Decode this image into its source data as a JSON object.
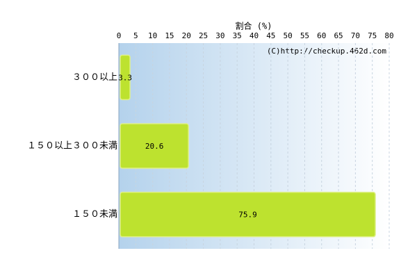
{
  "chart_data": {
    "type": "bar",
    "orientation": "horizontal",
    "title": "割合 (%)",
    "annotation": "(C)http://checkup.462d.com",
    "categories": [
      "３００以上",
      "１５０以上３００未満",
      "１５０未満"
    ],
    "values": [
      3.3,
      20.6,
      75.9
    ],
    "color": "#bde22f",
    "xlim": [
      0,
      80
    ],
    "xticks": [
      0,
      5,
      10,
      15,
      20,
      25,
      30,
      35,
      40,
      45,
      50,
      55,
      60,
      65,
      70,
      75,
      80
    ],
    "grid": true
  }
}
